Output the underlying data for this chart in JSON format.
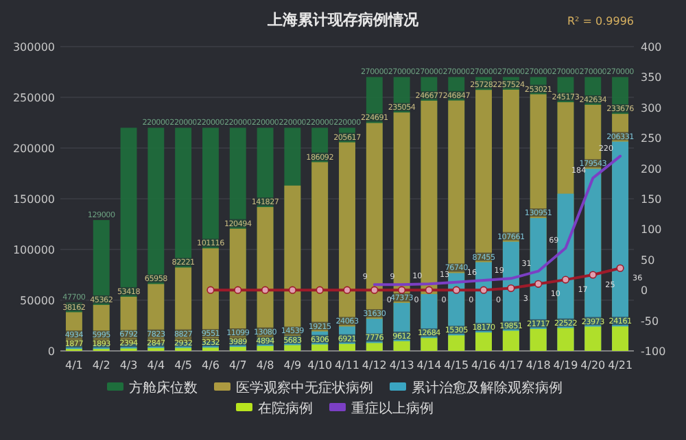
{
  "chart_data": {
    "type": "bar",
    "title": "上海累计现存病例情况",
    "annotations": [
      "R² = 0.9996"
    ],
    "categories": [
      "4/1",
      "4/2",
      "4/3",
      "4/4",
      "4/5",
      "4/6",
      "4/7",
      "4/8",
      "4/9",
      "4/10",
      "4/11",
      "4/12",
      "4/13",
      "4/14",
      "4/15",
      "4/16",
      "4/17",
      "4/18",
      "4/19",
      "4/20",
      "4/21"
    ],
    "ylim": [
      0,
      300000
    ],
    "yticks": [
      0,
      50000,
      100000,
      150000,
      200000,
      250000,
      300000
    ],
    "y2lim": [
      -100,
      400
    ],
    "y2ticks": [
      -100,
      -50,
      0,
      50,
      100,
      150,
      200,
      250,
      300,
      350,
      400
    ],
    "grid": "y",
    "legend": "bottom",
    "series": [
      {
        "name": "方舱床位数",
        "color": "#1e6e3c",
        "values": [
          47700,
          129000,
          220000,
          220000,
          220000,
          220000,
          220000,
          220000,
          220000,
          220000,
          220000,
          270000,
          270000,
          270000,
          270000,
          270000,
          270000,
          270000,
          270000,
          270000,
          270000
        ],
        "value_labels": [
          "47700",
          "129000",
          null,
          "220000",
          "220000",
          "220000",
          "220000",
          "220000",
          "220000",
          "220000",
          "220000",
          "270000",
          "270000",
          "270000",
          "270000",
          "270000",
          "270000",
          "270000",
          "270000",
          "270000",
          "270000"
        ]
      },
      {
        "name": "医学观察中无症状病例",
        "color": "#ad9a40",
        "values": [
          38162,
          45362,
          53418,
          65958,
          82221,
          101116,
          120494,
          141827,
          163000,
          186092,
          205617,
          224691,
          235054,
          246677,
          246847,
          257282,
          257524,
          253021,
          245173,
          242634,
          233676
        ],
        "value_labels": [
          "38162",
          "45362",
          "53418",
          "65958",
          "82221",
          "101116",
          "120494",
          "141827",
          null,
          "186092",
          "205617",
          "224691",
          "235054",
          "246677",
          "246847",
          "257282",
          "257524",
          "253021",
          "245173",
          "242634",
          "233676"
        ]
      },
      {
        "name": "累计治愈及解除观察病例",
        "color": "#3aa5c2",
        "values": [
          4934,
          5995,
          6792,
          7823,
          8827,
          9551,
          11099,
          13080,
          14539,
          19215,
          24063,
          31630,
          47373,
          56000,
          76740,
          87455,
          107661,
          130951,
          155000,
          179543,
          206331
        ],
        "value_labels": [
          "4934",
          "5995",
          "6792",
          "7823",
          "8827",
          "9551",
          "11099",
          "13080",
          "14539",
          "19215",
          "24063",
          "31630",
          "47373",
          null,
          "76740",
          "87455",
          "107661",
          "130951",
          null,
          "179543",
          "206331"
        ]
      },
      {
        "name": "在院病例",
        "color": "#b8e41e",
        "values": [
          1877,
          1893,
          2394,
          2847,
          2932,
          3232,
          3989,
          4894,
          5683,
          6306,
          6921,
          7776,
          9612,
          12684,
          15305,
          18170,
          19851,
          21717,
          22522,
          23973,
          24161
        ],
        "data_labels": true
      },
      {
        "type": "line",
        "axis": "y2",
        "name": "重症以上病例",
        "color": "#7b3fc4",
        "marker": "none",
        "values": [
          null,
          null,
          null,
          null,
          null,
          null,
          null,
          null,
          null,
          null,
          null,
          9,
          9,
          10,
          13,
          16,
          19,
          31,
          69,
          184,
          220
        ],
        "data_labels": true
      },
      {
        "type": "line",
        "axis": "y2",
        "color": "#9e1b2a",
        "marker": "circle",
        "values": [
          null,
          null,
          null,
          null,
          null,
          0,
          0,
          0,
          0,
          0,
          0,
          0,
          0,
          0,
          0,
          0,
          3,
          10,
          17,
          25,
          36
        ],
        "value_labels": [
          null,
          null,
          null,
          null,
          null,
          null,
          null,
          null,
          null,
          null,
          null,
          "0",
          "0",
          "0",
          "0",
          "0",
          "3",
          "10",
          "17",
          "25",
          "36"
        ]
      }
    ]
  }
}
